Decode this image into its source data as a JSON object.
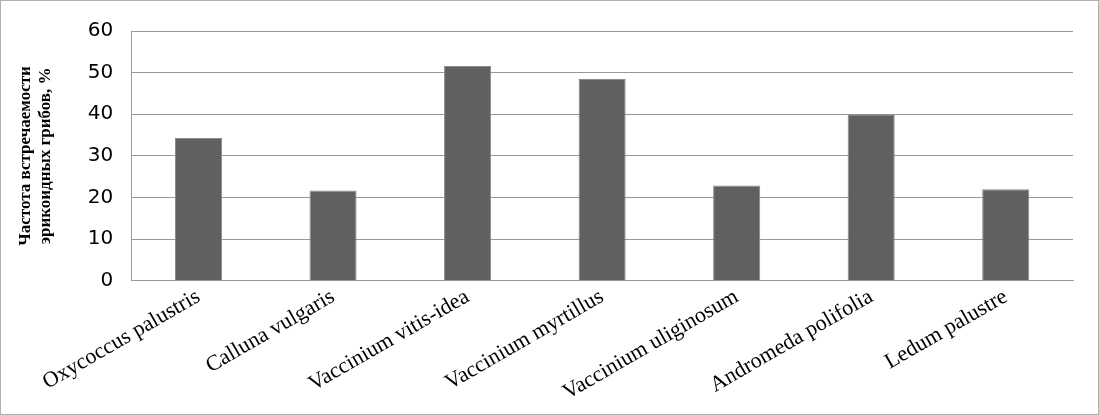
{
  "chart_data": {
    "type": "bar",
    "ylabel": "Частота встречаемости эрикоидных грибов, %",
    "categories": [
      "Oxycoccus palustris",
      "Calluna vulgaris",
      "Vaccinium vitis-idea",
      "Vaccinium myrtillus",
      "Vaccinium uliginosum",
      "Andromeda polifolia",
      "Ledum palustre"
    ],
    "values": [
      34.3,
      21.7,
      51.6,
      48.5,
      22.9,
      40,
      22
    ],
    "color": "#606060",
    "ylim": [
      0,
      60
    ],
    "yticks": [
      0,
      10,
      20,
      30,
      40,
      50,
      60
    ],
    "grid": "y",
    "legend": false
  }
}
